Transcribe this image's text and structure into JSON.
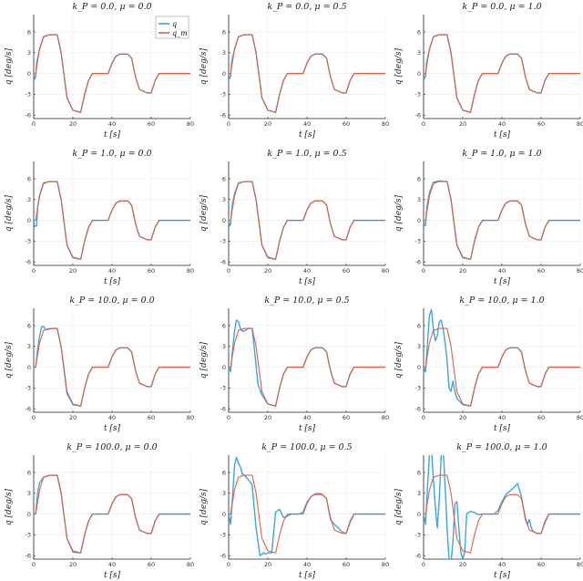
{
  "chart_data": {
    "type": "line",
    "layout": "4x3 grid",
    "grid": true,
    "xlim": [
      0,
      80
    ],
    "ylim": [
      -6.5,
      8.5
    ],
    "xticks": [
      0,
      20,
      40,
      60,
      80
    ],
    "yticks": [
      -6,
      -3,
      0,
      3,
      6
    ],
    "xticklabels": [
      "0",
      "20",
      "40",
      "60",
      "80"
    ],
    "yticklabels": [
      "-6",
      "-3",
      "0",
      "3",
      "6"
    ],
    "ylabel": "q [deg/s]",
    "xlabel": "t [s]",
    "legend": {
      "placement": "top-right of first panel",
      "entries": [
        {
          "name": "q",
          "color": "#3da6e0"
        },
        {
          "name": "q_m",
          "color": "#e06045"
        }
      ]
    },
    "reference_series": {
      "name": "q_m",
      "color": "#e06045",
      "x": [
        0,
        1,
        3,
        5,
        8,
        12,
        14,
        17,
        20,
        24,
        26,
        28,
        30,
        38,
        40,
        42,
        44,
        48,
        50,
        52,
        54,
        58,
        60,
        62,
        64,
        72,
        80
      ],
      "y": [
        0,
        0,
        3.5,
        5.3,
        5.6,
        5.6,
        3,
        -3.5,
        -5.3,
        -5.6,
        -3,
        -1,
        0,
        0,
        1.5,
        2.5,
        2.8,
        2.8,
        2.2,
        -0.5,
        -2.3,
        -2.8,
        -2.8,
        -1,
        0,
        0,
        0
      ]
    },
    "panels": [
      {
        "title": "k_P = 0.0, μ = 0.0",
        "kp": "0.0",
        "mu": "0.0",
        "q_series": {
          "x": [
            0,
            0.5,
            1,
            1.5,
            2,
            3,
            5,
            8,
            12,
            14,
            17,
            20,
            24,
            26,
            28,
            30,
            38,
            40,
            42,
            44,
            48,
            50,
            52,
            54,
            58,
            60,
            62,
            64,
            80
          ],
          "y": [
            0,
            -0.8,
            -0.5,
            1.5,
            2.2,
            3.5,
            5.3,
            5.6,
            5.6,
            3,
            -3.5,
            -5.3,
            -5.6,
            -3,
            -1,
            0,
            0,
            1.5,
            2.5,
            2.8,
            2.8,
            2.2,
            -0.5,
            -2.3,
            -2.8,
            -2.8,
            -1,
            0,
            0
          ]
        }
      },
      {
        "title": "k_P = 0.0, μ = 0.5",
        "kp": "0.0",
        "mu": "0.5",
        "q_series": {
          "x": [
            0,
            0.5,
            1,
            1.5,
            2,
            3,
            5,
            8,
            12,
            14,
            17,
            20,
            24,
            26,
            28,
            30,
            38,
            40,
            42,
            44,
            48,
            50,
            52,
            54,
            58,
            60,
            62,
            64,
            80
          ],
          "y": [
            0,
            -0.7,
            -0.4,
            1.5,
            2.2,
            3.5,
            5.3,
            5.6,
            5.6,
            3,
            -3.5,
            -5.3,
            -5.6,
            -3,
            -1,
            0,
            0,
            1.5,
            2.5,
            2.8,
            2.8,
            2.2,
            -0.5,
            -2.3,
            -2.8,
            -2.8,
            -1,
            0,
            0
          ]
        }
      },
      {
        "title": "k_P = 0.0, μ = 1.0",
        "kp": "0.0",
        "mu": "1.0",
        "q_series": {
          "x": [
            0,
            0.5,
            1,
            1.5,
            2,
            3,
            5,
            8,
            12,
            14,
            17,
            20,
            24,
            26,
            28,
            30,
            38,
            40,
            42,
            44,
            48,
            50,
            52,
            54,
            58,
            60,
            62,
            64,
            80
          ],
          "y": [
            0,
            -0.7,
            -0.4,
            1.5,
            2.2,
            3.5,
            5.3,
            5.6,
            5.6,
            3,
            -3.5,
            -5.3,
            -5.6,
            -3,
            -1,
            0,
            0,
            1.5,
            2.5,
            2.8,
            2.8,
            2.2,
            -0.5,
            -2.3,
            -2.8,
            -2.8,
            -1,
            0,
            0
          ]
        }
      },
      {
        "title": "k_P = 1.0, μ = 0.0",
        "kp": "1.0",
        "mu": "0.0",
        "q_series": {
          "x": [
            0,
            0.5,
            1,
            1.5,
            2,
            3,
            5,
            8,
            12,
            14,
            17,
            20,
            24,
            26,
            28,
            30,
            38,
            40,
            42,
            44,
            48,
            50,
            52,
            54,
            58,
            60,
            62,
            64,
            80
          ],
          "y": [
            0,
            -0.9,
            -0.8,
            -0.8,
            1.8,
            3.6,
            5.4,
            5.6,
            5.6,
            3,
            -3.6,
            -5.4,
            -5.6,
            -3,
            -1,
            0,
            0,
            1.5,
            2.5,
            2.8,
            2.8,
            2.2,
            -0.5,
            -2.3,
            -2.8,
            -2.8,
            -1,
            0,
            0
          ]
        }
      },
      {
        "title": "k_P = 1.0, μ = 0.5",
        "kp": "1.0",
        "mu": "0.5",
        "q_series": {
          "x": [
            0,
            0.5,
            1,
            1.5,
            2,
            3,
            5,
            8,
            12,
            14,
            17,
            20,
            24,
            26,
            28,
            30,
            38,
            40,
            42,
            44,
            48,
            50,
            52,
            54,
            58,
            60,
            62,
            64,
            80
          ],
          "y": [
            0,
            -0.8,
            -0.6,
            1.2,
            2.5,
            3.8,
            5.4,
            5.6,
            5.6,
            3,
            -3.6,
            -5.4,
            -5.6,
            -3,
            -1,
            0,
            0,
            1.5,
            2.5,
            2.8,
            2.8,
            2.2,
            -0.5,
            -2.3,
            -2.8,
            -2.8,
            -1,
            0,
            0
          ]
        }
      },
      {
        "title": "k_P = 1.0, μ = 1.0",
        "kp": "1.0",
        "mu": "1.0",
        "q_series": {
          "x": [
            0,
            0.5,
            1,
            1.5,
            2,
            3,
            5,
            8,
            12,
            14,
            17,
            20,
            24,
            26,
            28,
            30,
            38,
            40,
            42,
            44,
            48,
            50,
            52,
            54,
            58,
            60,
            62,
            64,
            80
          ],
          "y": [
            0,
            -0.8,
            -0.7,
            1.2,
            2.5,
            4.0,
            5.5,
            5.7,
            5.6,
            3,
            -3.6,
            -5.4,
            -5.6,
            -3,
            -1,
            0,
            0,
            1.5,
            2.5,
            2.8,
            2.8,
            2.2,
            -0.5,
            -2.3,
            -2.8,
            -2.8,
            -1,
            0,
            0
          ]
        }
      },
      {
        "title": "k_P = 10.0, μ = 0.0",
        "kp": "10.0",
        "mu": "0.0",
        "q_series": {
          "x": [
            0,
            1,
            2,
            3,
            4,
            5,
            6,
            8,
            10,
            12,
            14,
            17,
            20,
            24,
            26,
            28,
            30,
            38,
            40,
            42,
            44,
            48,
            50,
            52,
            54,
            58,
            60,
            62,
            64,
            80
          ],
          "y": [
            0,
            0,
            2.5,
            4.5,
            5.8,
            5.9,
            5.4,
            5.5,
            5.6,
            5.6,
            3,
            -3.8,
            -5.4,
            -5.6,
            -3,
            -1,
            0,
            0,
            1.5,
            2.5,
            2.8,
            2.8,
            2.2,
            -0.5,
            -2.3,
            -2.8,
            -2.8,
            -1,
            0,
            0
          ]
        }
      },
      {
        "title": "k_P = 10.0, μ = 0.5",
        "kp": "10.0",
        "mu": "0.5",
        "q_series": {
          "x": [
            0,
            1,
            2,
            3,
            4,
            5,
            6,
            7,
            8,
            10,
            12,
            13,
            15,
            17,
            20,
            24,
            26,
            28,
            30,
            38,
            40,
            42,
            44,
            48,
            50,
            52,
            54,
            58,
            60,
            62,
            64,
            80
          ],
          "y": [
            0,
            -0.6,
            2.5,
            5.2,
            6.8,
            6.6,
            5.6,
            5.2,
            5.2,
            5.6,
            5.6,
            3,
            -2.5,
            -4,
            -5.3,
            -5.6,
            -3,
            -1,
            0,
            0,
            1.5,
            2.5,
            2.8,
            2.8,
            2.2,
            -0.5,
            -2.3,
            -2.8,
            -2.8,
            -1,
            0,
            0
          ]
        }
      },
      {
        "title": "k_P = 10.0, μ = 1.0",
        "kp": "10.0",
        "mu": "1.0",
        "q_series": {
          "x": [
            0,
            1,
            2,
            3,
            4,
            5,
            6,
            7,
            8,
            9,
            10,
            11,
            12,
            13,
            14,
            15,
            16,
            17,
            20,
            24,
            26,
            28,
            30,
            38,
            40,
            42,
            44,
            48,
            50,
            52,
            54,
            58,
            60,
            62,
            64,
            80
          ],
          "y": [
            0,
            -0.7,
            3.5,
            7.5,
            8.3,
            5.5,
            3.8,
            4.5,
            6.5,
            6.8,
            5.5,
            3.5,
            1,
            -3,
            -3.5,
            -2,
            -3.5,
            -4.5,
            -5.4,
            -5.6,
            -3,
            -1,
            0,
            0,
            1.5,
            2.5,
            2.8,
            2.8,
            2.2,
            -0.5,
            -2.3,
            -2.8,
            -2.8,
            -1,
            0,
            0
          ]
        }
      },
      {
        "title": "k_P = 100.0, μ = 0.0",
        "kp": "100.0",
        "mu": "0.0",
        "q_series": {
          "x": [
            0,
            1,
            2,
            3,
            5,
            8,
            12,
            14,
            17,
            20,
            24,
            26,
            28,
            30,
            38,
            40,
            42,
            44,
            48,
            50,
            52,
            54,
            58,
            60,
            62,
            64,
            80
          ],
          "y": [
            0,
            0,
            3,
            4.5,
            5.3,
            5.6,
            5.6,
            3,
            -3.5,
            -5.5,
            -5.6,
            -3,
            -1,
            0,
            0,
            1.5,
            2.5,
            2.8,
            2.8,
            2.2,
            -0.5,
            -2.3,
            -2.8,
            -2.8,
            -1,
            0,
            0
          ]
        }
      },
      {
        "title": "k_P = 100.0, μ = 0.5",
        "kp": "100.0",
        "mu": "0.5",
        "q_series": {
          "x": [
            0,
            1,
            2,
            3,
            4,
            5,
            6,
            7,
            8,
            10,
            12,
            14,
            16,
            18,
            19,
            20,
            22,
            24,
            26,
            28,
            30,
            32,
            36,
            38,
            40,
            42,
            44,
            46,
            48,
            50,
            52,
            54,
            56,
            58,
            60,
            62,
            64,
            80
          ],
          "y": [
            0,
            -1.5,
            2.5,
            7,
            8.2,
            7.3,
            6.8,
            5.8,
            5.6,
            5,
            4.2,
            -2,
            -6,
            -5.6,
            -5.8,
            -5.6,
            -5.6,
            0.3,
            0.7,
            -0.5,
            -0.3,
            0,
            0,
            0.3,
            1.7,
            2.5,
            2.9,
            3.0,
            2.8,
            2.2,
            -0.8,
            -1.5,
            -2.0,
            -2.6,
            -2.8,
            -1.2,
            0,
            0
          ]
        }
      },
      {
        "title": "k_P = 100.0, μ = 1.0",
        "kp": "100.0",
        "mu": "1.0",
        "q_series": {
          "x": [
            0,
            1,
            2,
            3,
            4,
            5,
            6,
            7,
            8,
            9,
            10,
            11,
            12,
            13,
            14,
            15,
            16,
            17,
            18,
            19,
            20,
            21,
            22,
            24,
            26,
            28,
            30,
            32,
            36,
            38,
            40,
            42,
            44,
            46,
            48,
            50,
            51,
            52,
            53,
            54,
            55,
            56,
            58,
            60,
            62,
            64,
            80
          ],
          "y": [
            0,
            -1.5,
            4,
            8.5,
            9.5,
            5,
            1,
            -2,
            2,
            8.5,
            9.5,
            4,
            -2,
            -6.5,
            -7,
            -4,
            1.5,
            1.8,
            -2,
            -5.5,
            -6.5,
            -5.5,
            0,
            0.4,
            0.2,
            -0.1,
            0,
            0,
            0,
            0.5,
            1.8,
            2.8,
            3.3,
            3.8,
            4.4,
            2.5,
            0.8,
            -0.8,
            -1.5,
            -0.8,
            -2,
            -2.5,
            -2.8,
            -2.8,
            -1.2,
            0,
            0
          ]
        }
      }
    ]
  }
}
